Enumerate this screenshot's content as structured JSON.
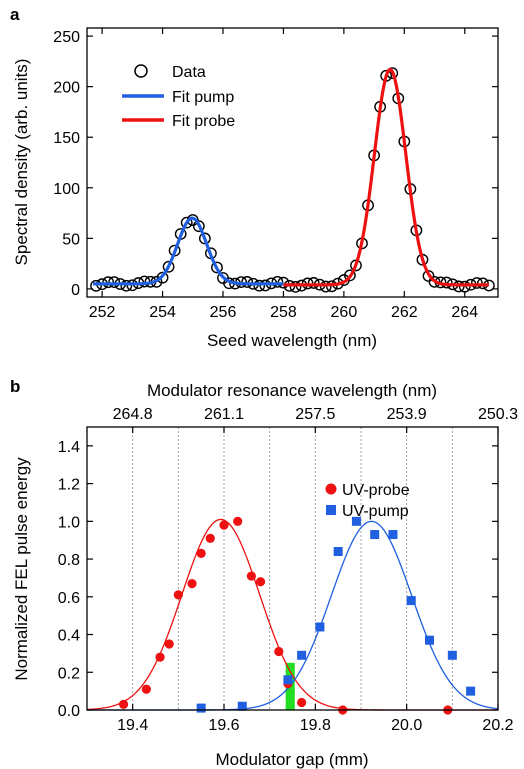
{
  "chart_data": [
    {
      "panel": "a",
      "type": "line",
      "xlabel": "Seed wavelength (nm)",
      "ylabel": "Spectral density (arb. units)",
      "xlim": [
        251.5,
        265.1
      ],
      "ylim": [
        -8,
        258
      ],
      "xticks": [
        252,
        254,
        256,
        258,
        260,
        262,
        264
      ],
      "yticks": [
        0,
        50,
        100,
        150,
        200,
        250
      ],
      "grid": false,
      "legend": "top-left",
      "legend_labels": {
        "data": "Data",
        "pump": "Fit pump",
        "probe": "Fit probe"
      },
      "colors": {
        "pump": "#1f5fe0",
        "probe": "#ee1111",
        "data": "#000000"
      },
      "series": [
        {
          "name": "Fit pump",
          "kind": "gaussian",
          "x_range": [
            251.7,
            258.0
          ],
          "amplitude": 65,
          "center": 254.98,
          "sigma": 0.48,
          "offset": 5
        },
        {
          "name": "Fit probe",
          "kind": "gaussian",
          "x_range": [
            258.0,
            264.8
          ],
          "amplitude": 213,
          "center": 261.53,
          "sigma": 0.52,
          "offset": 4
        },
        {
          "name": "Data",
          "kind": "markers",
          "x_range": [
            251.8,
            264.8
          ],
          "step": 0.2
        }
      ]
    },
    {
      "panel": "b",
      "type": "scatter",
      "xlabel": "Modulator gap (mm)",
      "ylabel": "Normalized FEL pulse energy",
      "top_label": "Modulator resonance wavelength (nm)",
      "xlim": [
        19.3,
        20.2
      ],
      "ylim": [
        0,
        1.5
      ],
      "xticks": [
        19.4,
        19.6,
        19.8,
        20.0,
        20.2
      ],
      "yticks": [
        0.0,
        0.2,
        0.4,
        0.6,
        0.8,
        1.0,
        1.2,
        1.4
      ],
      "top_ticks": [
        {
          "x": 19.4,
          "label": "264.8"
        },
        {
          "x": 19.6,
          "label": "261.1"
        },
        {
          "x": 19.8,
          "label": "257.5"
        },
        {
          "x": 20.0,
          "label": "253.9"
        },
        {
          "x": 20.2,
          "label": "250.3"
        }
      ],
      "vertical_gridlines_x": [
        19.4,
        19.5,
        19.6,
        19.7,
        19.8,
        19.9,
        20.0,
        20.1,
        20.2
      ],
      "grid": "vertical dotted",
      "legend": "top-right",
      "highlight_band": {
        "x": [
          19.735,
          19.755
        ],
        "y": [
          0,
          0.25
        ],
        "color": "#22dd22"
      },
      "series": [
        {
          "name": "UV-probe",
          "marker": "circle",
          "color": "#ee1111",
          "points": [
            [
              19.38,
              0.03
            ],
            [
              19.43,
              0.11
            ],
            [
              19.46,
              0.28
            ],
            [
              19.48,
              0.35
            ],
            [
              19.5,
              0.61
            ],
            [
              19.53,
              0.67
            ],
            [
              19.55,
              0.83
            ],
            [
              19.57,
              0.91
            ],
            [
              19.6,
              0.98
            ],
            [
              19.63,
              1.0
            ],
            [
              19.66,
              0.71
            ],
            [
              19.68,
              0.68
            ],
            [
              19.72,
              0.31
            ],
            [
              19.74,
              0.14
            ],
            [
              19.77,
              0.04
            ],
            [
              19.86,
              0.0
            ],
            [
              20.09,
              0.0
            ]
          ],
          "fit": {
            "amplitude": 1.01,
            "center": 19.593,
            "sigma": 0.085
          }
        },
        {
          "name": "UV-pump",
          "marker": "square",
          "color": "#1f5fe0",
          "points": [
            [
              19.55,
              0.01
            ],
            [
              19.64,
              0.02
            ],
            [
              19.74,
              0.16
            ],
            [
              19.77,
              0.29
            ],
            [
              19.81,
              0.44
            ],
            [
              19.85,
              0.84
            ],
            [
              19.89,
              1.0
            ],
            [
              19.93,
              0.93
            ],
            [
              19.97,
              0.93
            ],
            [
              20.01,
              0.58
            ],
            [
              20.05,
              0.37
            ],
            [
              20.1,
              0.29
            ],
            [
              20.14,
              0.1
            ]
          ],
          "fit": {
            "amplitude": 1.0,
            "center": 19.923,
            "sigma": 0.088
          }
        }
      ]
    }
  ]
}
